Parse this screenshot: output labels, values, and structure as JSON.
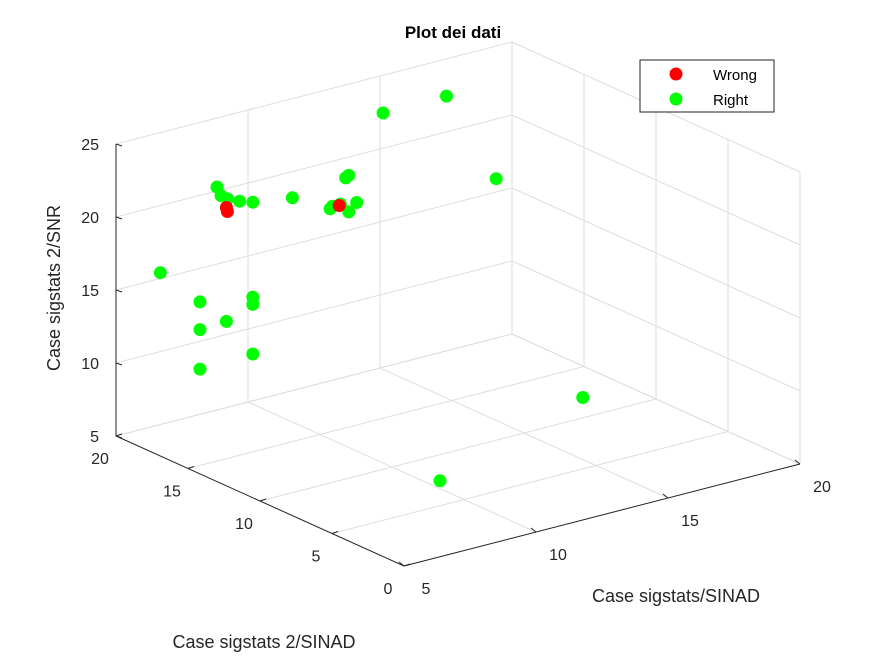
{
  "chart_data": {
    "type": "scatter",
    "title": "Plot dei dati",
    "xlabel": "Case sigstats/SINAD",
    "ylabel": "Case sigstats 2/SINAD",
    "zlabel": "Case sigstats 2/SNR",
    "xlim": [
      5,
      20
    ],
    "ylim": [
      0,
      20
    ],
    "zlim": [
      5,
      25
    ],
    "xticks": [
      "5",
      "10",
      "15",
      "20"
    ],
    "yticks": [
      "0",
      "5",
      "10",
      "15",
      "20"
    ],
    "zticks": [
      "5",
      "10",
      "15",
      "20",
      "25"
    ],
    "grid": true,
    "legend_position": "top-right",
    "series": [
      {
        "name": "Wrong",
        "color": "#ff0000",
        "points": [
          {
            "x": 7.0,
            "y": 16.0,
            "z": 21.5
          },
          {
            "x": 7.2,
            "y": 16.3,
            "z": 21.0
          },
          {
            "x": 11.0,
            "y": 15.5,
            "z": 20.0
          }
        ]
      },
      {
        "name": "Right",
        "color": "#00ff00",
        "points": [
          {
            "x": 16.7,
            "y": 18.5,
            "z": 23.5
          },
          {
            "x": 13.1,
            "y": 16.3,
            "z": 25.0
          },
          {
            "x": 6.7,
            "y": 16.1,
            "z": 23.0
          },
          {
            "x": 6.8,
            "y": 16.0,
            "z": 22.4
          },
          {
            "x": 7.1,
            "y": 16.1,
            "z": 22.0
          },
          {
            "x": 7.5,
            "y": 16.0,
            "z": 21.7
          },
          {
            "x": 8.0,
            "y": 16.0,
            "z": 21.4
          },
          {
            "x": 9.5,
            "y": 16.0,
            "z": 21.0
          },
          {
            "x": 11.2,
            "y": 15.2,
            "z": 22.1
          },
          {
            "x": 11.3,
            "y": 15.6,
            "z": 21.7
          },
          {
            "x": 10.6,
            "y": 15.4,
            "z": 20.0
          },
          {
            "x": 10.8,
            "y": 15.6,
            "z": 20.0
          },
          {
            "x": 11.1,
            "y": 15.6,
            "z": 20.0
          },
          {
            "x": 11.5,
            "y": 15.2,
            "z": 20.1
          },
          {
            "x": 11.2,
            "y": 15.2,
            "z": 19.6
          },
          {
            "x": 15.2,
            "y": 12.3,
            "z": 21.3
          },
          {
            "x": 4.5,
            "y": 16.0,
            "z": 18.2
          },
          {
            "x": 6.0,
            "y": 16.0,
            "z": 15.5
          },
          {
            "x": 6.0,
            "y": 16.0,
            "z": 13.6
          },
          {
            "x": 7.0,
            "y": 16.0,
            "z": 13.7
          },
          {
            "x": 8.0,
            "y": 16.0,
            "z": 14.9
          },
          {
            "x": 8.0,
            "y": 16.0,
            "z": 14.4
          },
          {
            "x": 6.0,
            "y": 16.0,
            "z": 10.9
          },
          {
            "x": 8.0,
            "y": 16.0,
            "z": 11.0
          },
          {
            "x": 12.7,
            "y": 1.7,
            "z": 12.2
          },
          {
            "x": 8.0,
            "y": 3.0,
            "z": 8.1
          }
        ]
      }
    ]
  }
}
